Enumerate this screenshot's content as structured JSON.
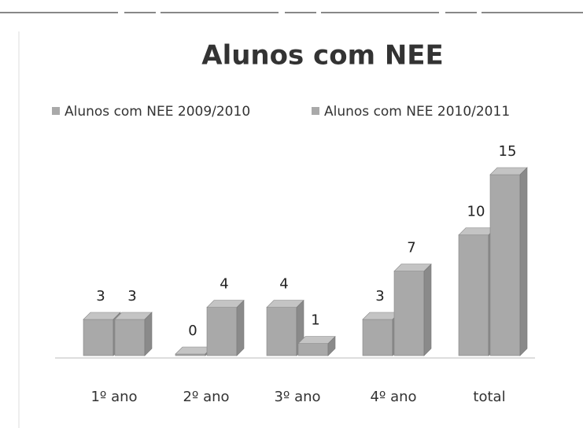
{
  "chart_data": {
    "type": "bar",
    "title": "Alunos com NEE",
    "categories": [
      "1º ano",
      "2º ano",
      "3º ano",
      "4º ano",
      "total"
    ],
    "series": [
      {
        "name": "Alunos com NEE 2009/2010",
        "color": "#a9a9a9",
        "values": [
          3,
          0,
          4,
          3,
          10
        ]
      },
      {
        "name": "Alunos com NEE 2010/2011",
        "color": "#a9a9a9",
        "values": [
          3,
          4,
          1,
          7,
          15
        ]
      }
    ]
  }
}
